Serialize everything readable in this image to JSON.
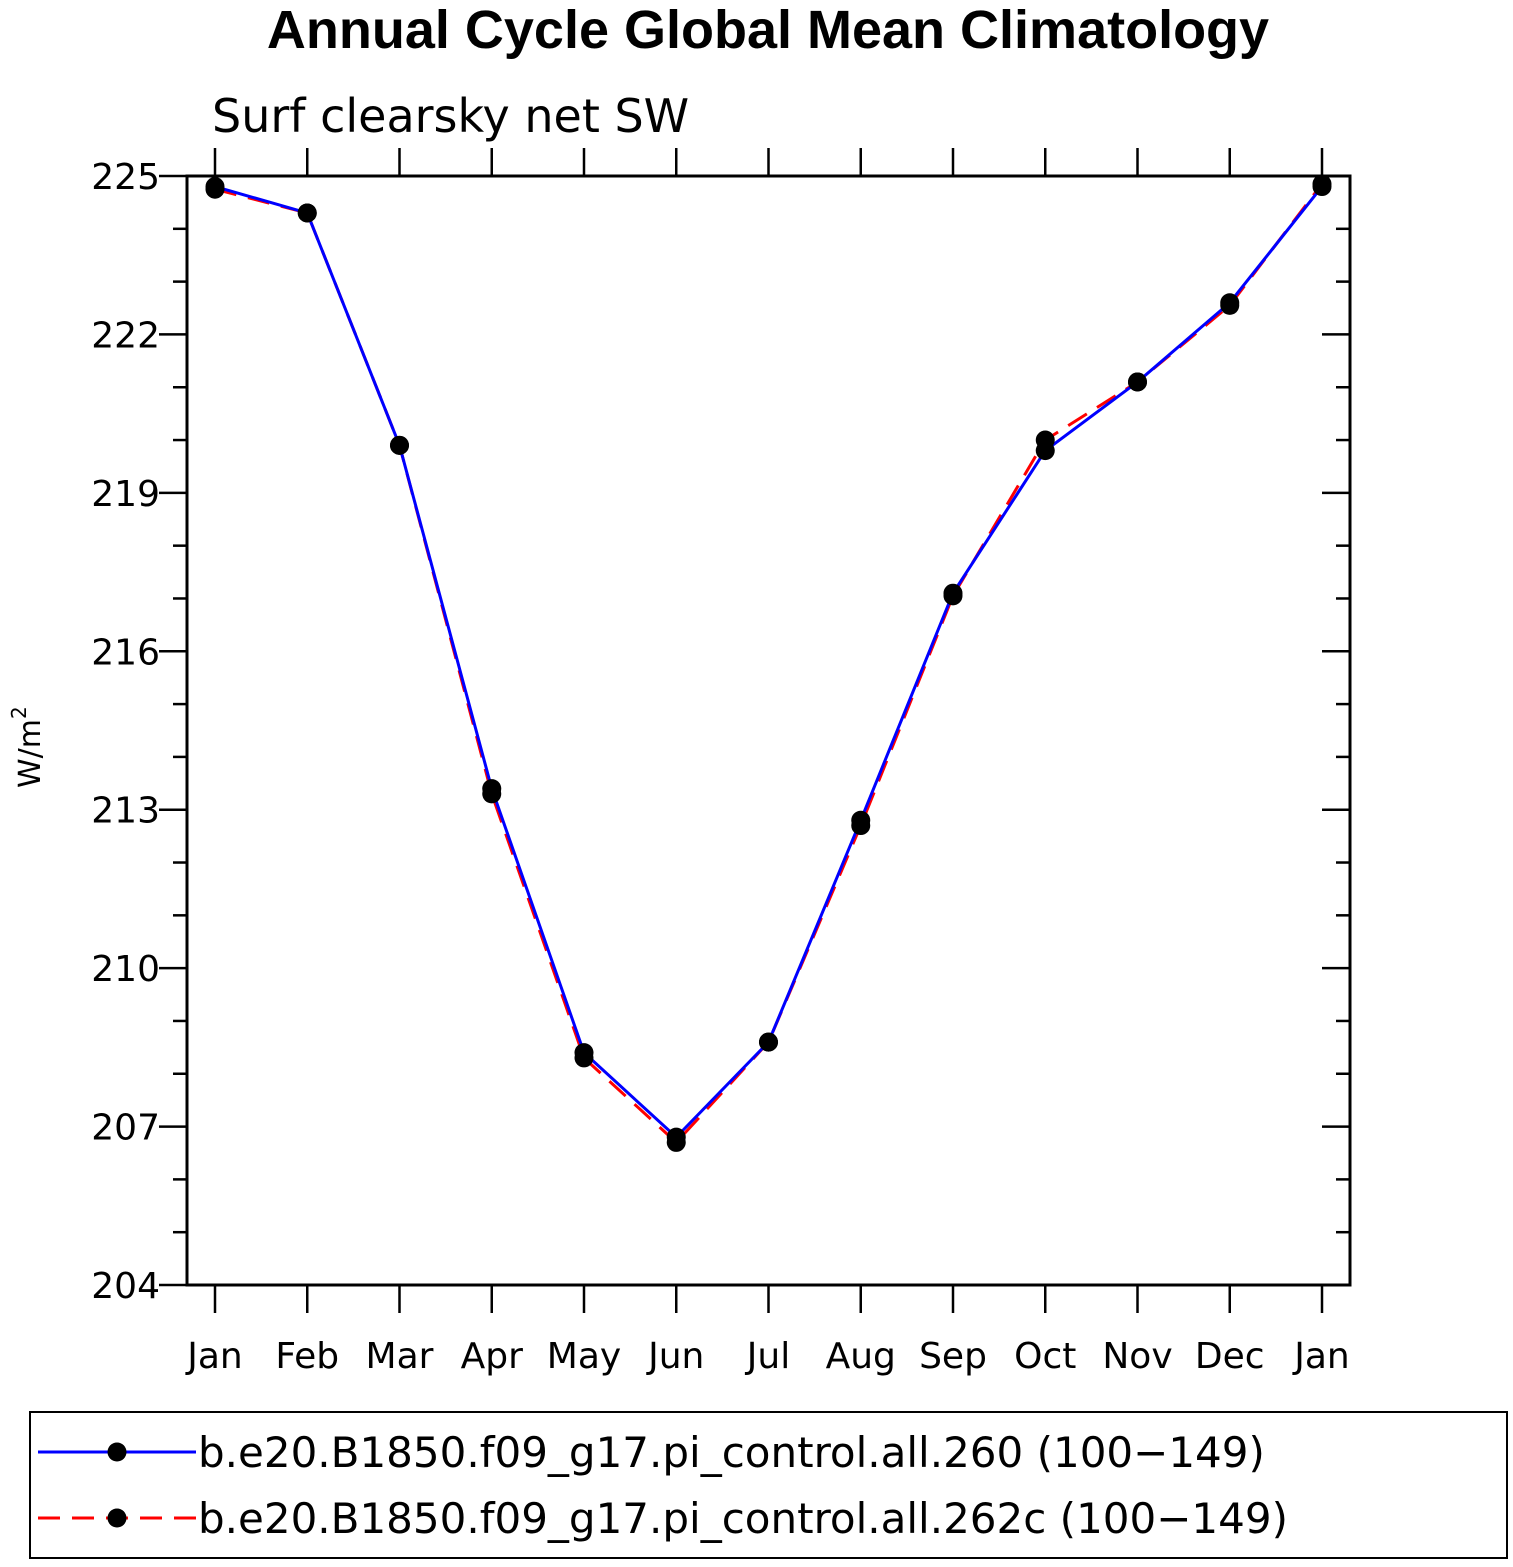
{
  "chart_data": {
    "type": "line",
    "title": "Annual Cycle Global Mean Climatology",
    "subtitle": "Surf clearsky net SW",
    "ylabel": "W/m",
    "ylabel_sup": "2",
    "categories": [
      "Jan",
      "Feb",
      "Mar",
      "Apr",
      "May",
      "Jun",
      "Jul",
      "Aug",
      "Sep",
      "Oct",
      "Nov",
      "Dec",
      "Jan"
    ],
    "ylim": [
      204,
      225
    ],
    "yticks": [
      204,
      207,
      210,
      213,
      216,
      219,
      222,
      225
    ],
    "y_minor_step": 1,
    "grid": false,
    "legend_position": "bottom",
    "series": [
      {
        "name": "b.e20.B1850.f09_g17.pi_control.all.260 (100−149)",
        "color": "#0000ff",
        "style": "solid",
        "marker": "filled-circle",
        "values": [
          224.8,
          224.3,
          219.9,
          213.4,
          208.4,
          206.8,
          208.6,
          212.8,
          217.1,
          219.8,
          221.1,
          222.6,
          224.8
        ]
      },
      {
        "name": "b.e20.B1850.f09_g17.pi_control.all.262c (100−149)",
        "color": "#ff0000",
        "style": "dashed",
        "marker": "filled-circle",
        "values": [
          224.75,
          224.3,
          219.9,
          213.3,
          208.3,
          206.7,
          208.6,
          212.7,
          217.05,
          220.0,
          221.1,
          222.55,
          224.85
        ]
      }
    ]
  }
}
